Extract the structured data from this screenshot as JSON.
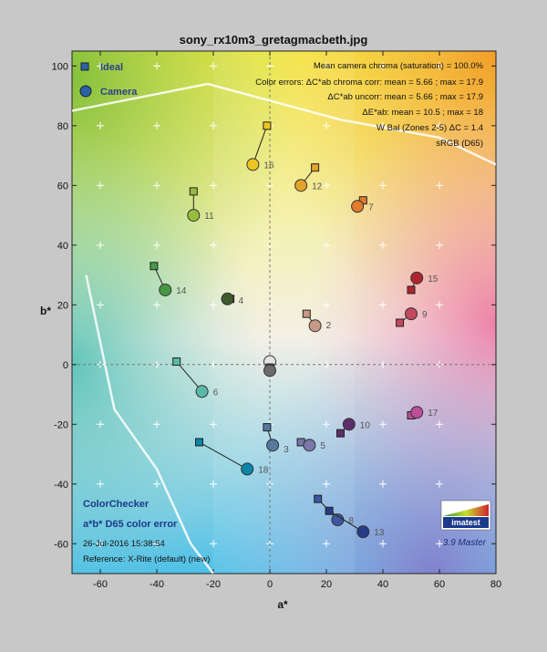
{
  "chart_data": {
    "type": "scatter",
    "title": "sony_rx10m3_gretagmacbeth.jpg",
    "xlabel": "a*",
    "ylabel": "b*",
    "xlim": [
      -70,
      80
    ],
    "ylim": [
      -70,
      105
    ],
    "xticks": [
      -60,
      -40,
      -20,
      0,
      20,
      40,
      60,
      80
    ],
    "yticks": [
      -60,
      -40,
      -20,
      0,
      20,
      40,
      60,
      80,
      100
    ],
    "grid": false,
    "legend": {
      "placement": "top-left",
      "ideal_label": "Ideal",
      "camera_label": "Camera"
    },
    "stats": [
      "Mean camera chroma (saturation) = 100.0%",
      "Color errors: ΔC*ab chroma corr:  mean = 5.66 ;  max = 17.9",
      "ΔC*ab uncorr:  mean = 5.66 ;  max = 17.9",
      "ΔE*ab:  mean = 10.5 ;  max = 18",
      "W Bal (Zones 2-5) ΔC = 1.4",
      "sRGB (D65)"
    ],
    "footer": {
      "chart_name": "ColorChecker",
      "subtitle": "a*b* D65 color error",
      "date": "26-Jul-2016 15:38:54",
      "reference": "Reference: X-Rite (default) (new)"
    },
    "brand": {
      "logo_text": "imatest",
      "version": "3.9  Master"
    },
    "gamut_outline": [
      [
        -70,
        85
      ],
      [
        -22,
        94
      ],
      [
        25,
        82
      ],
      [
        60,
        76
      ],
      [
        80,
        67
      ]
    ],
    "gamut_outline_left": [
      [
        -65,
        30
      ],
      [
        -55,
        -15
      ],
      [
        -40,
        -35
      ],
      [
        -28,
        -60
      ],
      [
        -20,
        -70
      ]
    ],
    "patches": [
      {
        "id": "2",
        "ideal": [
          13,
          17
        ],
        "camera": [
          16,
          13
        ],
        "color": "#c69a86",
        "label_offset": [
          4,
          -5
        ]
      },
      {
        "id": "3",
        "ideal": [
          -1,
          -21
        ],
        "camera": [
          1,
          -27
        ],
        "color": "#57799f",
        "label_offset": [
          4,
          0
        ]
      },
      {
        "id": "4",
        "ideal": [
          -14,
          22
        ],
        "camera": [
          -15,
          22
        ],
        "color": "#3d5a2b",
        "label_offset": [
          4,
          -3
        ]
      },
      {
        "id": "5",
        "ideal": [
          11,
          -26
        ],
        "camera": [
          14,
          -27
        ],
        "color": "#7b76ab",
        "label_offset": [
          4,
          -4
        ]
      },
      {
        "id": "6",
        "ideal": [
          -33,
          1
        ],
        "camera": [
          -24,
          -9
        ],
        "color": "#5bb8a8",
        "label_offset": [
          4,
          -4
        ]
      },
      {
        "id": "7",
        "ideal": [
          33,
          55
        ],
        "camera": [
          31,
          53
        ],
        "color": "#e07c2c",
        "label_offset": [
          4,
          -4
        ]
      },
      {
        "id": "8",
        "ideal": [
          17,
          -45
        ],
        "camera": [
          24,
          -52
        ],
        "color": "#3f56a0",
        "label_offset": [
          4,
          -4
        ]
      },
      {
        "id": "9",
        "ideal": [
          46,
          14
        ],
        "camera": [
          50,
          17
        ],
        "color": "#c3495c",
        "label_offset": [
          4,
          -4
        ]
      },
      {
        "id": "10",
        "ideal": [
          25,
          -23
        ],
        "camera": [
          28,
          -20
        ],
        "color": "#5b2f6b",
        "label_offset": [
          4,
          -4
        ]
      },
      {
        "id": "11",
        "ideal": [
          -27,
          58
        ],
        "camera": [
          -27,
          50
        ],
        "color": "#97bc3e",
        "label_offset": [
          4,
          -4
        ]
      },
      {
        "id": "12",
        "ideal": [
          16,
          66
        ],
        "camera": [
          11,
          60
        ],
        "color": "#e3a22c",
        "label_offset": [
          4,
          -4
        ]
      },
      {
        "id": "13",
        "ideal": [
          21,
          -49
        ],
        "camera": [
          33,
          -56
        ],
        "color": "#273b87",
        "label_offset": [
          4,
          -4
        ]
      },
      {
        "id": "14",
        "ideal": [
          -41,
          33
        ],
        "camera": [
          -37,
          25
        ],
        "color": "#479a45",
        "label_offset": [
          4,
          -4
        ]
      },
      {
        "id": "15",
        "ideal": [
          50,
          25
        ],
        "camera": [
          52,
          29
        ],
        "color": "#b0262f",
        "label_offset": [
          4,
          -4
        ]
      },
      {
        "id": "16",
        "ideal": [
          -1,
          80
        ],
        "camera": [
          -6,
          67
        ],
        "color": "#ecc521",
        "label_offset": [
          4,
          -4
        ]
      },
      {
        "id": "17",
        "ideal": [
          50,
          -17
        ],
        "camera": [
          52,
          -16
        ],
        "color": "#bd4f98",
        "label_offset": [
          4,
          -4
        ]
      },
      {
        "id": "18",
        "ideal": [
          -25,
          -26
        ],
        "camera": [
          -8,
          -35
        ],
        "color": "#0c84a8",
        "label_offset": [
          4,
          -4
        ]
      },
      {
        "id": "",
        "ideal": [
          0,
          0
        ],
        "camera": [
          0,
          1
        ],
        "color": "#e4e4e4",
        "label_offset": [
          0,
          0
        ]
      },
      {
        "id": "",
        "ideal": [
          0,
          -1
        ],
        "camera": [
          0,
          -2
        ],
        "color": "#6b6b6b",
        "label_offset": [
          0,
          0
        ]
      }
    ]
  }
}
